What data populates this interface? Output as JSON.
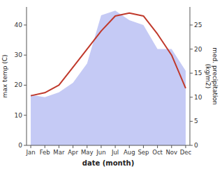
{
  "chart_data": {
    "type": "line",
    "categories": [
      "Jan",
      "Feb",
      "Mar",
      "Apr",
      "May",
      "Jun",
      "Jul",
      "Aug",
      "Sep",
      "Oct",
      "Nov",
      "Dec"
    ],
    "xlabel": "date (month)",
    "ylabel": "max temp (C)",
    "y2label": "med. precipitation\n(kg/m2)",
    "ylim": [
      0,
      46
    ],
    "yticks": [
      0,
      10,
      20,
      30,
      40
    ],
    "y2lim": [
      0,
      28.75
    ],
    "y2ticks": [
      0,
      5,
      10,
      15,
      20,
      25
    ],
    "grid": false,
    "series": [
      {
        "type": "area",
        "axis": "y2",
        "color": "#c5caf5",
        "values": [
          10.5,
          10,
          11,
          13,
          17,
          27,
          28,
          26,
          25,
          20,
          20,
          15.5
        ]
      },
      {
        "type": "line",
        "color": "#c0392b",
        "values": [
          16.5,
          17.5,
          20,
          26,
          32,
          38,
          43,
          44,
          43,
          37,
          30,
          19
        ]
      }
    ]
  }
}
